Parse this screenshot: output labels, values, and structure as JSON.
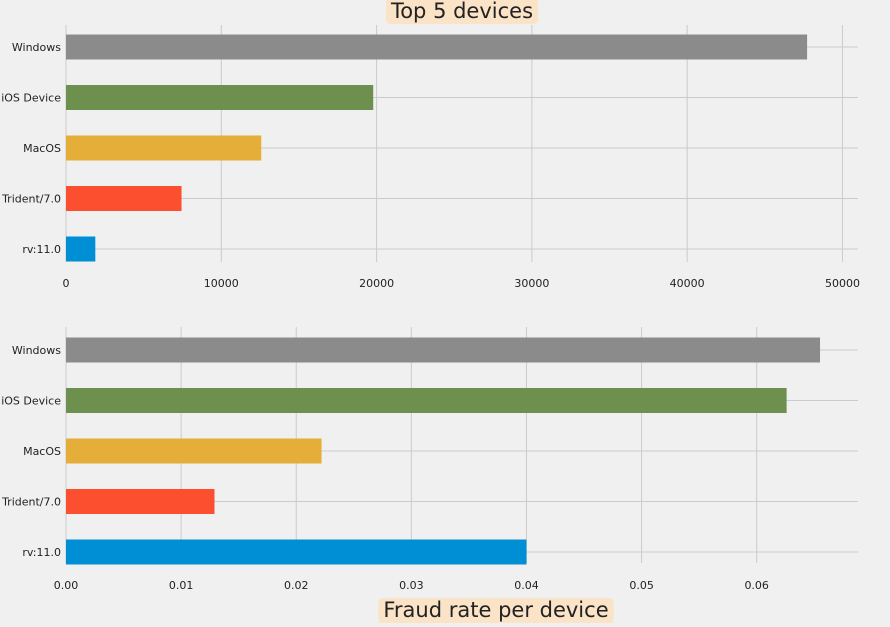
{
  "chart_data": [
    {
      "type": "bar",
      "orientation": "horizontal",
      "title": "Top 5 devices",
      "categories": [
        "Windows",
        "iOS Device",
        "MacOS",
        "Trident/7.0",
        "rv:11.0"
      ],
      "values": [
        47722,
        19782,
        12573,
        7440,
        1888
      ],
      "bar_colors": [
        "#8b8b8b",
        "#6d904f",
        "#e5ae38",
        "#fc4f30",
        "#008fd5"
      ],
      "xlim": [
        0,
        51000
      ],
      "xticks": [
        0,
        10000,
        20000,
        30000,
        40000,
        50000
      ],
      "xtick_labels": [
        "0",
        "10000",
        "20000",
        "30000",
        "40000",
        "50000"
      ],
      "xlabel": "",
      "ylabel": "",
      "grid": true
    },
    {
      "type": "bar",
      "orientation": "horizontal",
      "title": "",
      "categories": [
        "Windows",
        "iOS Device",
        "MacOS",
        "Trident/7.0",
        "rv:11.0"
      ],
      "values": [
        0.0655,
        0.0626,
        0.0222,
        0.0129,
        0.04
      ],
      "bar_colors": [
        "#8b8b8b",
        "#6d904f",
        "#e5ae38",
        "#fc4f30",
        "#008fd5"
      ],
      "xlim": [
        0,
        0.0688
      ],
      "xticks": [
        0,
        0.01,
        0.02,
        0.03,
        0.04,
        0.05,
        0.06
      ],
      "xtick_labels": [
        "0.00",
        "0.01",
        "0.02",
        "0.03",
        "0.04",
        "0.05",
        "0.06"
      ],
      "xlabel": "Fraud rate per device",
      "ylabel": "",
      "grid": true
    }
  ],
  "colors": {
    "background": "#f0f0f0",
    "grid": "#cbcbcb",
    "label_box": "#fbe3c7",
    "text": "#222222"
  }
}
